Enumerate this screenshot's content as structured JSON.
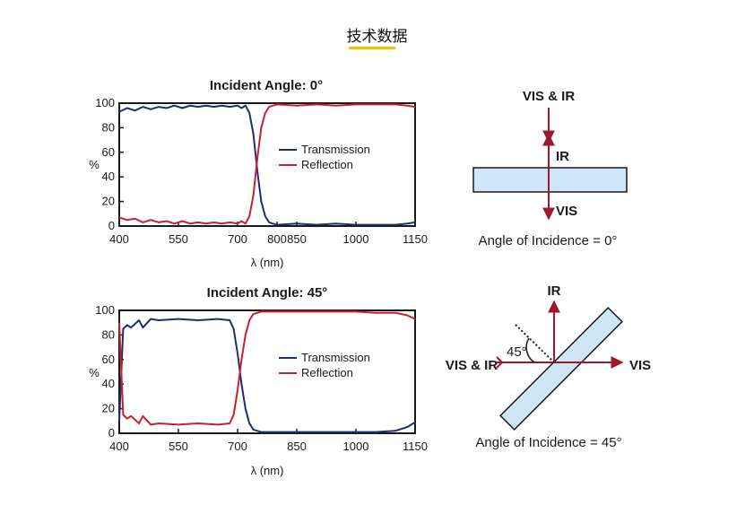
{
  "page": {
    "title": "技术数据"
  },
  "chart_data": [
    {
      "type": "line",
      "title": "Incident Angle: 0°",
      "xlabel": "λ (nm)",
      "ylabel": "%",
      "xlim": [
        400,
        1150
      ],
      "ylim": [
        0,
        100
      ],
      "xticks": [
        400,
        550,
        700,
        800,
        850,
        1000,
        1150
      ],
      "yticks": [
        0,
        20,
        40,
        60,
        80,
        100
      ],
      "legend": "center-right",
      "grid": false,
      "series": [
        {
          "name": "Transmission",
          "color": "#1f2d6e",
          "x": [
            400,
            420,
            440,
            460,
            480,
            500,
            520,
            540,
            560,
            580,
            600,
            620,
            640,
            660,
            680,
            700,
            710,
            720,
            730,
            740,
            750,
            760,
            770,
            780,
            790,
            800,
            850,
            900,
            950,
            1000,
            1050,
            1100,
            1130,
            1150
          ],
          "y": [
            93,
            96,
            94,
            97,
            95,
            97,
            96,
            98,
            96,
            98,
            97,
            98,
            97,
            98,
            97,
            98,
            96,
            98,
            92,
            75,
            45,
            20,
            8,
            3,
            2,
            1,
            2,
            1,
            2,
            1,
            1,
            1,
            2,
            3
          ]
        },
        {
          "name": "Reflection",
          "color": "#c8202f",
          "x": [
            400,
            420,
            440,
            460,
            480,
            500,
            520,
            540,
            560,
            580,
            600,
            620,
            640,
            660,
            680,
            700,
            710,
            720,
            730,
            740,
            750,
            760,
            770,
            780,
            790,
            800,
            850,
            900,
            950,
            1000,
            1050,
            1100,
            1130,
            1150
          ],
          "y": [
            7,
            5,
            6,
            3,
            5,
            3,
            4,
            2,
            4,
            2,
            3,
            2,
            3,
            2,
            3,
            2,
            4,
            2,
            8,
            25,
            55,
            80,
            92,
            97,
            98,
            99,
            98,
            99,
            98,
            99,
            99,
            99,
            98,
            97
          ]
        }
      ]
    },
    {
      "type": "line",
      "title": "Incident Angle: 45°",
      "xlabel": "λ (nm)",
      "ylabel": "%",
      "xlim": [
        400,
        1150
      ],
      "ylim": [
        0,
        100
      ],
      "xticks": [
        400,
        550,
        700,
        850,
        1000,
        1150
      ],
      "yticks": [
        0,
        20,
        40,
        60,
        80,
        100
      ],
      "legend": "center-right",
      "grid": false,
      "series": [
        {
          "name": "Transmission",
          "color": "#1f2d6e",
          "x": [
            400,
            410,
            420,
            430,
            450,
            460,
            480,
            500,
            550,
            600,
            650,
            680,
            690,
            700,
            710,
            720,
            730,
            740,
            750,
            760,
            800,
            850,
            900,
            950,
            1000,
            1050,
            1100,
            1130,
            1150
          ],
          "y": [
            10,
            85,
            88,
            86,
            92,
            86,
            93,
            92,
            93,
            92,
            93,
            92,
            85,
            65,
            40,
            20,
            8,
            3,
            2,
            1,
            1,
            1,
            1,
            1,
            1,
            1,
            2,
            5,
            9
          ]
        },
        {
          "name": "Reflection",
          "color": "#c8202f",
          "x": [
            400,
            410,
            420,
            430,
            450,
            460,
            480,
            500,
            550,
            600,
            650,
            680,
            690,
            700,
            710,
            720,
            730,
            740,
            750,
            760,
            800,
            850,
            900,
            950,
            1000,
            1050,
            1100,
            1130,
            1150
          ],
          "y": [
            90,
            15,
            12,
            14,
            8,
            14,
            7,
            8,
            7,
            8,
            7,
            8,
            15,
            35,
            60,
            80,
            92,
            97,
            98,
            99,
            99,
            99,
            99,
            99,
            99,
            98,
            98,
            96,
            93
          ]
        }
      ]
    }
  ],
  "diagram_0": {
    "top_label": "VIS & IR",
    "reflected_label": "IR",
    "transmitted_label": "VIS",
    "caption": "Angle of Incidence = 0°"
  },
  "diagram_45": {
    "top_label": "IR",
    "incident_label": "VIS & IR",
    "transmitted_label": "VIS",
    "angle_label": "45°",
    "caption": "Angle of Incidence = 45°"
  },
  "colors": {
    "axis": "#1a1a1a",
    "arrow": "#a01830",
    "filter_fill": "#cfe6f6",
    "filter_stroke": "#1a1a1a",
    "accent_underline": "#f2c200"
  }
}
